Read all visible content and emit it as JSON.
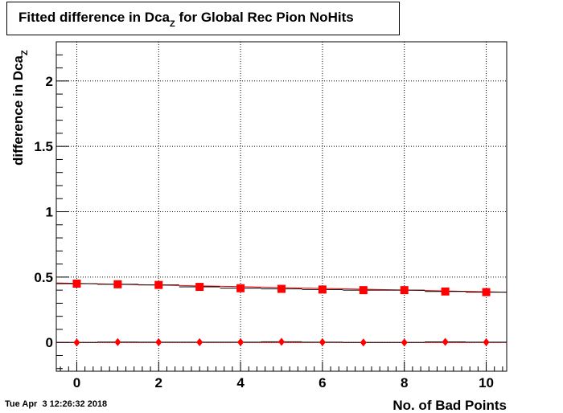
{
  "chart_data": {
    "type": "scatter",
    "title": "Fitted difference in Dca",
    "title_subscript": "Z",
    "title_suffix": " for Global Rec Pion NoHits",
    "xlabel": "No. of Bad Points",
    "ylabel": "difference in Dca",
    "ylabel_subscript": "Z",
    "xlim": [
      -0.5,
      10.5
    ],
    "ylim": [
      -0.22,
      2.3
    ],
    "x_ticks": [
      0,
      2,
      4,
      6,
      8,
      10
    ],
    "y_ticks": [
      0,
      0.5,
      1,
      1.5,
      2
    ],
    "y_tick_labels": [
      "0",
      "0.5",
      "1",
      "1.5",
      "2"
    ],
    "grid": true,
    "color": "#ff0000",
    "series": [
      {
        "marker": "square",
        "x": [
          0,
          1,
          2,
          3,
          4,
          5,
          6,
          7,
          8,
          9,
          10
        ],
        "y": [
          0.45,
          0.445,
          0.44,
          0.425,
          0.415,
          0.41,
          0.405,
          0.4,
          0.4,
          0.39,
          0.385
        ],
        "fit": [
          0.455,
          0.385
        ]
      },
      {
        "marker": "diamond",
        "x": [
          0,
          1,
          2,
          3,
          4,
          5,
          6,
          7,
          8,
          9,
          10
        ],
        "y": [
          0.0,
          0.003,
          0.002,
          0.002,
          0.002,
          0.005,
          0.002,
          0.0,
          0.0,
          0.004,
          0.002
        ],
        "fit": [
          0.0,
          0.0
        ]
      }
    ]
  },
  "timestamp": "Tue Apr  3 12:26:32 2018"
}
